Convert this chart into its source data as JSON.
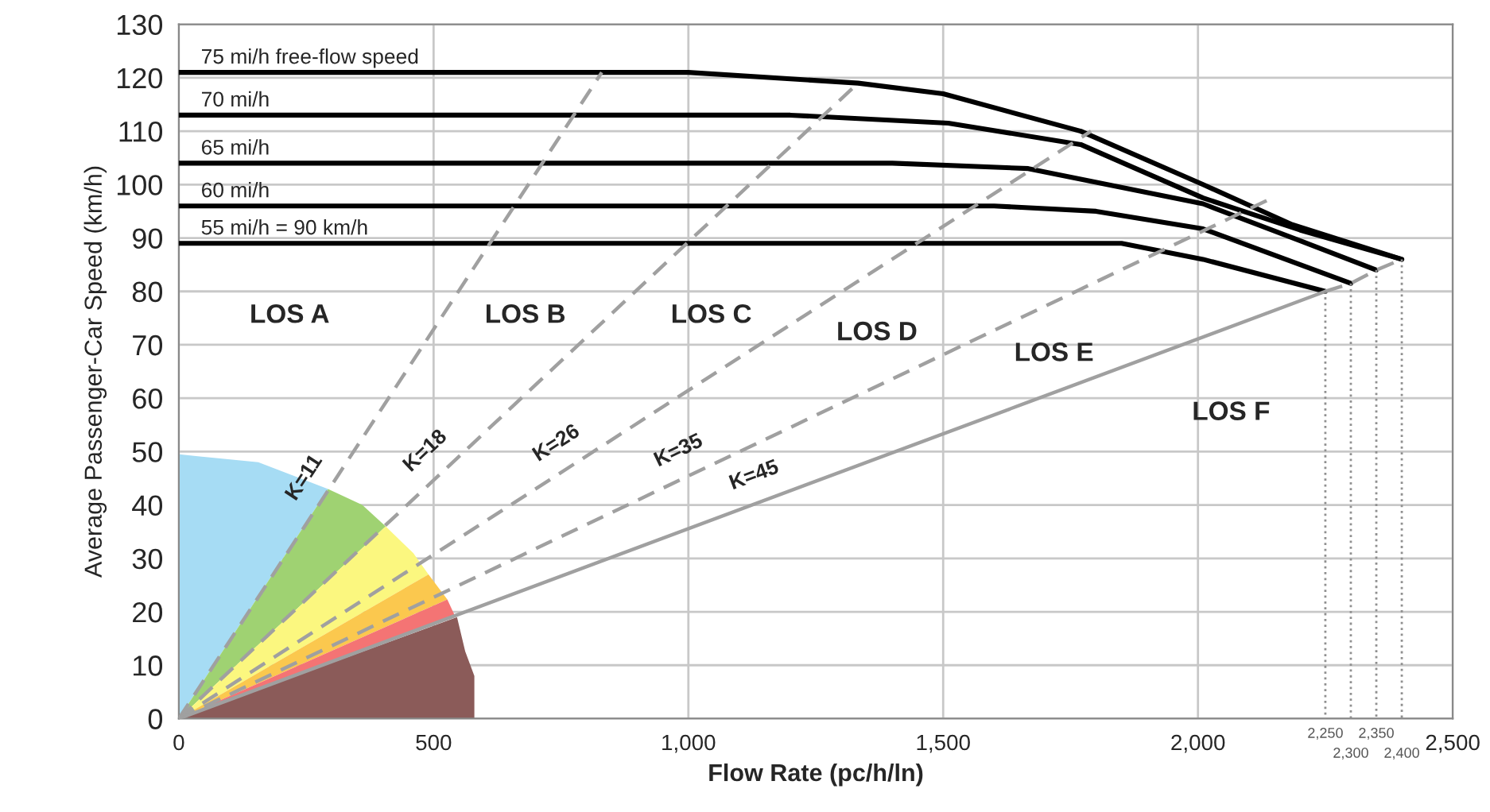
{
  "chart_data": {
    "type": "line",
    "xlabel": "Flow Rate (pc/h/ln)",
    "ylabel": "Average Passenger-Car Speed (km/h)",
    "xlim": [
      0,
      2500
    ],
    "ylim": [
      0,
      130
    ],
    "xticks": [
      0,
      500,
      {
        "value": 1000,
        "label": "1,000"
      },
      {
        "value": 1500,
        "label": "1,500"
      },
      {
        "value": 2000,
        "label": "2,000"
      },
      {
        "value": 2500,
        "label": "2,500"
      }
    ],
    "yticks": [
      0,
      10,
      20,
      30,
      40,
      50,
      60,
      70,
      80,
      90,
      100,
      110,
      120,
      130
    ],
    "grid": true,
    "marker": "none",
    "series": [
      {
        "type": "area",
        "color": "#a6dcf4",
        "x": [
          0,
          0,
          156,
          293
        ],
        "values": [
          0,
          49.5,
          48,
          43
        ]
      },
      {
        "type": "area",
        "color": "#9fd272",
        "x": [
          0,
          293,
          360,
          406
        ],
        "values": [
          0,
          43,
          40,
          36
        ]
      },
      {
        "type": "area",
        "color": "#fbf77f",
        "x": [
          0,
          406,
          460,
          490
        ],
        "values": [
          0,
          36,
          31,
          27
        ]
      },
      {
        "type": "area",
        "color": "#fbc84e",
        "x": [
          0,
          490,
          527
        ],
        "values": [
          0,
          27,
          22.3
        ]
      },
      {
        "type": "area",
        "color": "#f47474",
        "x": [
          0,
          527,
          543
        ],
        "values": [
          0,
          22.3,
          19
        ]
      },
      {
        "type": "area",
        "color": "#8b5b59",
        "x": [
          0,
          546,
          562,
          580,
          580
        ],
        "values": [
          0,
          19,
          12.6,
          8,
          0
        ]
      },
      {
        "name": "75 mi/h free-flow speed",
        "color": "#000000",
        "line_style": "solid",
        "x": [
          0,
          1000,
          1333,
          1500,
          1770,
          2010,
          2185,
          2400
        ],
        "values": [
          121,
          121,
          119,
          117,
          110,
          100,
          92.5,
          86
        ]
      },
      {
        "name": "70 mi/h",
        "color": "#000000",
        "line_style": "solid",
        "x": [
          0,
          1200,
          1510,
          1770,
          2010,
          2200,
          2400
        ],
        "values": [
          113,
          113,
          111.5,
          107.5,
          97.5,
          91.5,
          86
        ]
      },
      {
        "name": "65 mi/h",
        "color": "#000000",
        "line_style": "solid",
        "x": [
          0,
          1400,
          1667,
          2010,
          2200,
          2350
        ],
        "values": [
          104,
          104,
          103,
          96.4,
          89.5,
          84
        ]
      },
      {
        "name": "60 mi/h",
        "color": "#000000",
        "line_style": "solid",
        "x": [
          0,
          1600,
          1800,
          2010,
          2300
        ],
        "values": [
          96,
          96,
          95,
          91.7,
          81.5
        ]
      },
      {
        "name": "55 mi/h = 90 km/h",
        "color": "#000000",
        "line_style": "solid",
        "x": [
          0,
          1850,
          2010,
          2250
        ],
        "values": [
          89,
          89,
          86,
          80
        ]
      },
      {
        "name": "K=11",
        "color": "#a0a0a0",
        "line_style": "dashed",
        "x": [
          0,
          830
        ],
        "values": [
          0,
          121
        ]
      },
      {
        "name": "K=18",
        "color": "#a0a0a0",
        "line_style": "dashed",
        "x": [
          0,
          1333
        ],
        "values": [
          0,
          119
        ]
      },
      {
        "name": "K=26",
        "color": "#a0a0a0",
        "line_style": "dashed",
        "x": [
          0,
          1790
        ],
        "values": [
          0,
          110
        ]
      },
      {
        "name": "K=35",
        "color": "#a0a0a0",
        "line_style": "dashed",
        "x": [
          0,
          2135
        ],
        "values": [
          0,
          97
        ]
      },
      {
        "name": "K=45",
        "color": "#a0a0a0",
        "line_style": "solid",
        "x": [
          0,
          2250
        ],
        "values": [
          0,
          80
        ]
      },
      {
        "color": "#a0a0a0",
        "line_style": "dashed",
        "x": [
          2250,
          2300,
          2350,
          2400
        ],
        "values": [
          80,
          81.5,
          84,
          86
        ]
      },
      {
        "color": "#909090",
        "line_style": "dotted",
        "x": [
          2250,
          2250
        ],
        "values": [
          80,
          0
        ]
      },
      {
        "color": "#909090",
        "line_style": "dotted",
        "x": [
          2300,
          2300
        ],
        "values": [
          81.5,
          0
        ]
      },
      {
        "color": "#909090",
        "line_style": "dotted",
        "x": [
          2350,
          2350
        ],
        "values": [
          84,
          0
        ]
      },
      {
        "color": "#909090",
        "line_style": "dotted",
        "x": [
          2400,
          2400
        ],
        "values": [
          86,
          0
        ]
      }
    ],
    "annotations": [
      "LOS A",
      "LOS B",
      "LOS C",
      "LOS D",
      "LOS E",
      "LOS F",
      {
        "text": "2,250",
        "x": 2250,
        "y": 0
      },
      {
        "text": "2,300",
        "x": 2300,
        "y": 0
      },
      {
        "text": "2,350",
        "x": 2350,
        "y": 0
      },
      {
        "text": "2,400",
        "x": 2400,
        "y": 0
      }
    ]
  }
}
